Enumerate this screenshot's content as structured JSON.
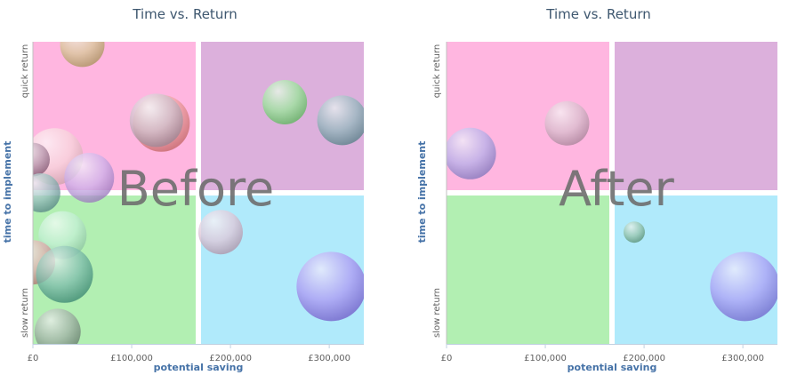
{
  "chart_data": [
    {
      "type": "scatter",
      "title": "Time vs. Return",
      "overlay_text": "Before",
      "xlabel": "potential saving",
      "ylabel": "time to implement",
      "y_top_label": "quick return",
      "y_bottom_label": "slow return",
      "xlim": [
        0,
        335000
      ],
      "ylim": [
        0,
        10
      ],
      "x_ticks": [
        {
          "value": 0,
          "label": "£0"
        },
        {
          "value": 100000,
          "label": "£100,000"
        },
        {
          "value": 200000,
          "label": "£200,000"
        },
        {
          "value": 300000,
          "label": "£300,000"
        }
      ],
      "quadrant_split": {
        "x": 167500,
        "y": 5
      },
      "quadrant_colors": {
        "top_left": "#ffb6e0",
        "top_right": "#dcb0dc",
        "bottom_left": "#b2efb2",
        "bottom_right": "#b0eafb"
      },
      "bubbles": [
        {
          "x": 50000,
          "y": 9.9,
          "size": 25,
          "color": "#c8b070"
        },
        {
          "x": 130000,
          "y": 7.3,
          "size": 32,
          "color": "#e87a7a"
        },
        {
          "x": 125000,
          "y": 7.4,
          "size": 30,
          "color": "#b8a0b0"
        },
        {
          "x": 22000,
          "y": 6.2,
          "size": 32,
          "color": "#f4c2cc"
        },
        {
          "x": 0,
          "y": 6.1,
          "size": 19,
          "color": "#9a6a8a"
        },
        {
          "x": 57000,
          "y": 5.5,
          "size": 28,
          "color": "#b890e0"
        },
        {
          "x": 8000,
          "y": 5.0,
          "size": 22,
          "color": "#6aa0a0"
        },
        {
          "x": 30000,
          "y": 3.6,
          "size": 27,
          "color": "#a8e8c0"
        },
        {
          "x": 0,
          "y": 2.7,
          "size": 25,
          "color": "#d08a8a"
        },
        {
          "x": 32000,
          "y": 2.3,
          "size": 32,
          "color": "#48a088"
        },
        {
          "x": 25000,
          "y": 0.4,
          "size": 26,
          "color": "#789080"
        },
        {
          "x": 255000,
          "y": 8.0,
          "size": 25,
          "color": "#70d870"
        },
        {
          "x": 313000,
          "y": 7.4,
          "size": 28,
          "color": "#6a9aa2"
        },
        {
          "x": 190000,
          "y": 3.7,
          "size": 25,
          "color": "#d0b0c8"
        },
        {
          "x": 302000,
          "y": 1.9,
          "size": 39,
          "color": "#8a70ee"
        }
      ]
    },
    {
      "type": "scatter",
      "title": "Time vs. Return",
      "overlay_text": "After",
      "xlabel": "potential saving",
      "ylabel": "time to implement",
      "y_top_label": "quick return",
      "y_bottom_label": "slow return",
      "xlim": [
        0,
        335000
      ],
      "ylim": [
        0,
        10
      ],
      "x_ticks": [
        {
          "value": 0,
          "label": "£0"
        },
        {
          "value": 100000,
          "label": "£100,000"
        },
        {
          "value": 200000,
          "label": "£200,000"
        },
        {
          "value": 300000,
          "label": "£300,000"
        }
      ],
      "quadrant_split": {
        "x": 167500,
        "y": 5
      },
      "quadrant_colors": {
        "top_left": "#ffb6e0",
        "top_right": "#dcb0dc",
        "bottom_left": "#b2efb2",
        "bottom_right": "#b0eafb"
      },
      "bubbles": [
        {
          "x": 24000,
          "y": 6.3,
          "size": 29,
          "color": "#9a90e0"
        },
        {
          "x": 122000,
          "y": 7.3,
          "size": 25,
          "color": "#c8a0b8"
        },
        {
          "x": 190000,
          "y": 3.7,
          "size": 12,
          "color": "#6aaa8a"
        },
        {
          "x": 302000,
          "y": 1.9,
          "size": 39,
          "color": "#8a7cf2"
        }
      ]
    }
  ]
}
